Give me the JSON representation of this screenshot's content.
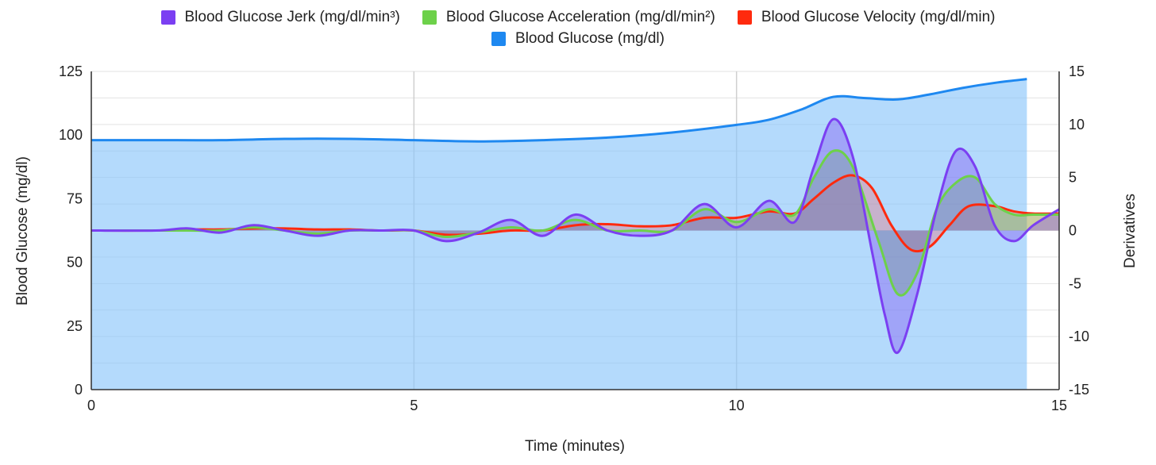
{
  "chart_data": {
    "type": "line",
    "x_label": "Time (minutes)",
    "y_left_label": "Blood Glucose (mg/dl)",
    "y_right_label": "Derivatives",
    "x_range": [
      0,
      15
    ],
    "y_left_range": [
      0,
      125
    ],
    "y_right_range": [
      -15,
      15
    ],
    "x_ticks": [
      "0",
      "5",
      "10",
      "15"
    ],
    "y_left_ticks": [
      "0",
      "25",
      "50",
      "75",
      "100",
      "125"
    ],
    "y_right_ticks": [
      "-15",
      "-10",
      "-5",
      "0",
      "5",
      "10",
      "15"
    ],
    "series": [
      {
        "name": "Blood Glucose Jerk (mg/dl/min³)",
        "axis": "right",
        "color": "#7b3ff2",
        "fill": "rgba(123,63,242,0.35)",
        "points": [
          [
            0,
            0
          ],
          [
            1,
            0
          ],
          [
            1.5,
            0.2
          ],
          [
            2,
            -0.2
          ],
          [
            2.5,
            0.5
          ],
          [
            3,
            0
          ],
          [
            3.5,
            -0.5
          ],
          [
            4,
            0
          ],
          [
            4.5,
            0
          ],
          [
            5,
            0
          ],
          [
            5.5,
            -1
          ],
          [
            6,
            -0.2
          ],
          [
            6.5,
            1
          ],
          [
            7,
            -0.5
          ],
          [
            7.5,
            1.5
          ],
          [
            8,
            0
          ],
          [
            8.5,
            -0.5
          ],
          [
            9,
            0
          ],
          [
            9.5,
            2.5
          ],
          [
            10,
            0.3
          ],
          [
            10.5,
            2.8
          ],
          [
            10.9,
            0.8
          ],
          [
            11.2,
            6
          ],
          [
            11.5,
            10.5
          ],
          [
            11.8,
            7
          ],
          [
            12.1,
            -2
          ],
          [
            12.3,
            -8
          ],
          [
            12.5,
            -11.5
          ],
          [
            12.8,
            -6
          ],
          [
            13.1,
            2
          ],
          [
            13.4,
            7.5
          ],
          [
            13.7,
            6
          ],
          [
            14,
            0.5
          ],
          [
            14.3,
            -1
          ],
          [
            14.6,
            0.5
          ],
          [
            15,
            2
          ]
        ]
      },
      {
        "name": "Blood Glucose Acceleration (mg/dl/min²)",
        "axis": "right",
        "color": "#6dd14a",
        "fill": "rgba(109,209,74,0.35)",
        "points": [
          [
            0,
            0
          ],
          [
            1,
            0
          ],
          [
            1.5,
            0
          ],
          [
            2,
            0
          ],
          [
            2.5,
            0.3
          ],
          [
            3,
            0
          ],
          [
            3.5,
            -0.3
          ],
          [
            4,
            0
          ],
          [
            4.5,
            0
          ],
          [
            5,
            0
          ],
          [
            5.5,
            -0.6
          ],
          [
            6,
            -0.2
          ],
          [
            6.5,
            0.3
          ],
          [
            7,
            0
          ],
          [
            7.5,
            1
          ],
          [
            8,
            0
          ],
          [
            8.5,
            0
          ],
          [
            9,
            0
          ],
          [
            9.5,
            2
          ],
          [
            10,
            0.8
          ],
          [
            10.5,
            2
          ],
          [
            10.9,
            1.5
          ],
          [
            11.2,
            5
          ],
          [
            11.5,
            7.5
          ],
          [
            11.8,
            6
          ],
          [
            12.2,
            -1
          ],
          [
            12.5,
            -6
          ],
          [
            12.8,
            -4
          ],
          [
            13.1,
            2
          ],
          [
            13.4,
            4.5
          ],
          [
            13.7,
            5
          ],
          [
            14,
            2.5
          ],
          [
            14.3,
            1.5
          ],
          [
            14.6,
            1.5
          ],
          [
            15,
            1.5
          ]
        ]
      },
      {
        "name": "Blood Glucose Velocity (mg/dl/min)",
        "axis": "right",
        "color": "#ff2a0e",
        "fill": "rgba(255,60,60,0.25)",
        "points": [
          [
            0,
            0
          ],
          [
            1,
            0
          ],
          [
            1.5,
            0.1
          ],
          [
            2,
            0.1
          ],
          [
            2.5,
            0.2
          ],
          [
            3,
            0.2
          ],
          [
            3.5,
            0.1
          ],
          [
            4,
            0.1
          ],
          [
            4.5,
            0
          ],
          [
            5,
            0
          ],
          [
            5.5,
            -0.4
          ],
          [
            6,
            -0.3
          ],
          [
            6.5,
            0
          ],
          [
            7,
            0
          ],
          [
            7.5,
            0.5
          ],
          [
            8,
            0.6
          ],
          [
            8.5,
            0.4
          ],
          [
            9,
            0.5
          ],
          [
            9.5,
            1.2
          ],
          [
            10,
            1.2
          ],
          [
            10.5,
            1.8
          ],
          [
            10.9,
            1.6
          ],
          [
            11.2,
            3
          ],
          [
            11.5,
            4.5
          ],
          [
            11.8,
            5.2
          ],
          [
            12.1,
            4
          ],
          [
            12.4,
            0.5
          ],
          [
            12.7,
            -1.8
          ],
          [
            13,
            -1.5
          ],
          [
            13.3,
            0.5
          ],
          [
            13.6,
            2.3
          ],
          [
            14,
            2.3
          ],
          [
            14.3,
            1.8
          ],
          [
            14.6,
            1.6
          ],
          [
            15,
            1.6
          ]
        ]
      },
      {
        "name": "Blood Glucose (mg/dl)",
        "axis": "left",
        "color": "#1e88f0",
        "fill": "rgba(140,198,250,0.65)",
        "points": [
          [
            0,
            98
          ],
          [
            1,
            98
          ],
          [
            2,
            98
          ],
          [
            3,
            98.5
          ],
          [
            4,
            98.5
          ],
          [
            5,
            98
          ],
          [
            6,
            97.5
          ],
          [
            7,
            98
          ],
          [
            8,
            99
          ],
          [
            9,
            101
          ],
          [
            10,
            104
          ],
          [
            10.5,
            106
          ],
          [
            11,
            110
          ],
          [
            11.5,
            115
          ],
          [
            12,
            114.5
          ],
          [
            12.5,
            114
          ],
          [
            13,
            116
          ],
          [
            13.5,
            118.5
          ],
          [
            14,
            120.5
          ],
          [
            14.5,
            122
          ]
        ]
      }
    ]
  }
}
